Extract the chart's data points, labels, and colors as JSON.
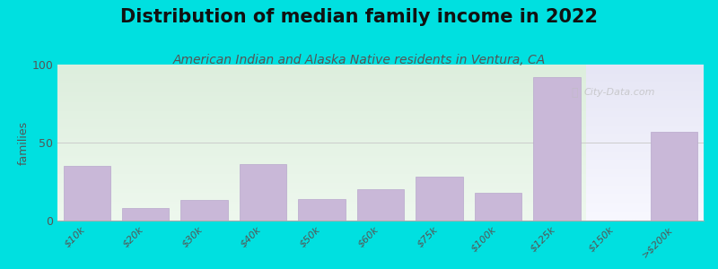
{
  "title": "Distribution of median family income in 2022",
  "subtitle": "American Indian and Alaska Native residents in Ventura, CA",
  "categories": [
    "$10k",
    "$20k",
    "$30k",
    "$40k",
    "$50k",
    "$60k",
    "$75k",
    "$100k",
    "$125k",
    "$150k",
    ">$200k"
  ],
  "values": [
    35,
    8,
    13,
    36,
    14,
    20,
    28,
    18,
    92,
    0,
    57
  ],
  "bar_color": "#c9b8d8",
  "bar_edge_color": "#b8a8cc",
  "ylabel": "families",
  "ylim": [
    0,
    100
  ],
  "yticks": [
    0,
    50,
    100
  ],
  "bg_outer": "#00e0e0",
  "bg_left_top": "#ddeedd",
  "bg_left_bottom": "#eef8ee",
  "bg_right_top": "#eeeeff",
  "bg_right_bottom": "#f8f8ff",
  "grid_color": "#cccccc",
  "title_fontsize": 15,
  "subtitle_fontsize": 10,
  "tick_fontsize": 8,
  "ylabel_fontsize": 9,
  "watermark": "City-Data.com",
  "split_index": 9
}
